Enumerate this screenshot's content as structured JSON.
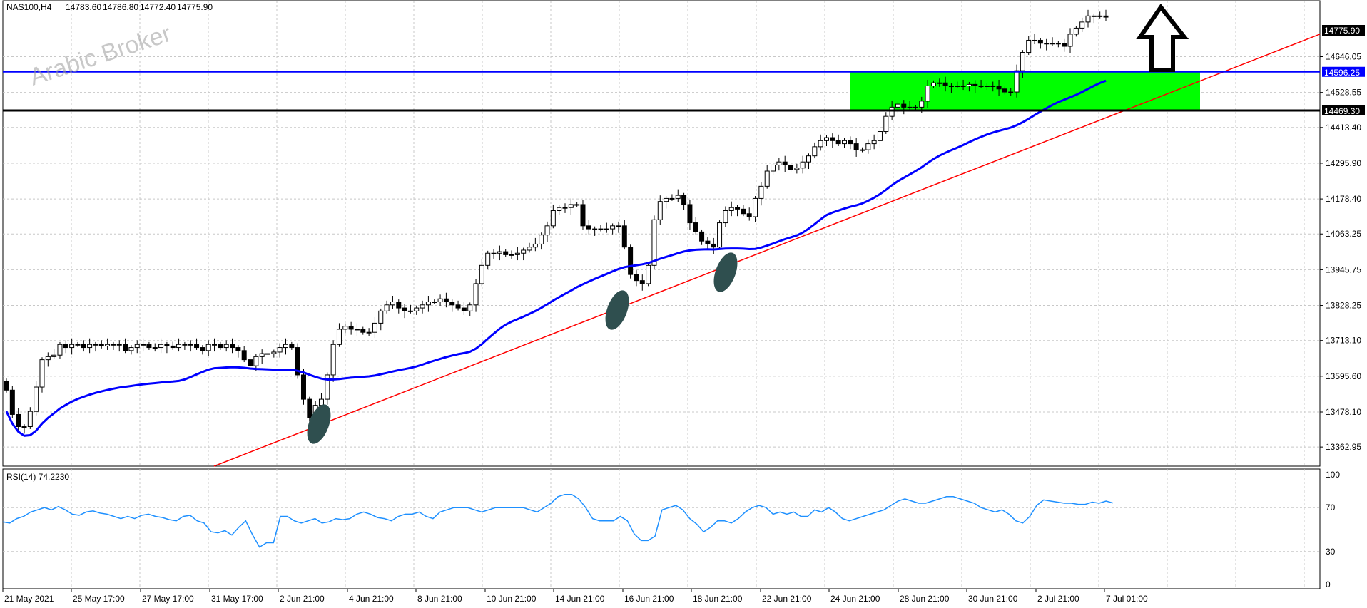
{
  "chart_data": {
    "type": "candlestick",
    "symbol_header": "NAS100,H4",
    "ohlc_header": [
      "14783.60",
      "14786.80",
      "14772.40",
      "14775.90"
    ],
    "watermark": "Arabic Broker",
    "ylim": [
      13300,
      14830
    ],
    "y_ticks": [
      "14646.05",
      "14528.55",
      "14413.40",
      "14295.90",
      "14178.40",
      "14063.25",
      "13945.75",
      "13828.25",
      "13713.10",
      "13595.60",
      "13478.10",
      "13362.95"
    ],
    "x_labels": [
      "21 May 2021",
      "25 May 17:00",
      "27 May 17:00",
      "31 May 17:00",
      "2 Jun 21:00",
      "4 Jun 21:00",
      "8 Jun 21:00",
      "10 Jun 21:00",
      "14 Jun 21:00",
      "16 Jun 21:00",
      "18 Jun 21:00",
      "22 Jun 21:00",
      "24 Jun 21:00",
      "28 Jun 21:00",
      "30 Jun 21:00",
      "2 Jul 21:00",
      "7 Jul 01:00"
    ],
    "price_tag": "14775.90",
    "levels": [
      {
        "label": "14596.25",
        "value": 14596.25,
        "color": "#0000ff"
      },
      {
        "label": "14469.30",
        "value": 14469.3,
        "color": "#000000"
      }
    ],
    "zone": {
      "from": 14469.3,
      "to": 14596.25,
      "color": "#00ff00"
    },
    "trendline_color": "#ff0000",
    "ma_color": "#0000ff",
    "candles": [
      13550,
      13470,
      13430,
      13430,
      13480,
      13560,
      13650,
      13660,
      13665,
      13700,
      13690,
      13700,
      13700,
      13690,
      13700,
      13700,
      13695,
      13700,
      13700,
      13700,
      13680,
      13690,
      13700,
      13700,
      13690,
      13690,
      13700,
      13695,
      13690,
      13700,
      13700,
      13700,
      13690,
      13680,
      13700,
      13700,
      13690,
      13700,
      13690,
      13680,
      13650,
      13630,
      13660,
      13670,
      13670,
      13675,
      13690,
      13700,
      13690,
      13600,
      13520,
      13460,
      13500,
      13520,
      13600,
      13700,
      13750,
      13760,
      13750,
      13750,
      13740,
      13740,
      13770,
      13810,
      13830,
      13840,
      13820,
      13810,
      13810,
      13820,
      13830,
      13840,
      13840,
      13850,
      13840,
      13830,
      13820,
      13810,
      13830,
      13900,
      13960,
      14000,
      14000,
      14005,
      13995,
      13995,
      14000,
      14010,
      14020,
      14030,
      14060,
      14090,
      14140,
      14150,
      14150,
      14160,
      14160,
      14090,
      14080,
      14080,
      14080,
      14080,
      14090,
      14090,
      14020,
      13930,
      13910,
      13900,
      13960,
      14110,
      14170,
      14180,
      14180,
      14190,
      14160,
      14100,
      14070,
      14040,
      14030,
      14020,
      14100,
      14140,
      14150,
      14145,
      14130,
      14120,
      14180,
      14220,
      14270,
      14290,
      14300,
      14290,
      14275,
      14280,
      14300,
      14320,
      14350,
      14370,
      14380,
      14370,
      14360,
      14370,
      14360,
      14340,
      14340,
      14360,
      14370,
      14400,
      14450,
      14480,
      14490,
      14480,
      14480,
      14480,
      14500,
      14550,
      14560,
      14560,
      14550,
      14550,
      14550,
      14550,
      14555,
      14550,
      14550,
      14550,
      14550,
      14540,
      14530,
      14530,
      14600,
      14660,
      14700,
      14700,
      14690,
      14690,
      14690,
      14690,
      14680,
      14720,
      14740,
      14760,
      14780,
      14780,
      14780,
      14776
    ]
  },
  "indicator": {
    "label": "RSI(14) 74.2230",
    "ticks": [
      "100",
      "70",
      "30",
      "0"
    ],
    "color": "#1e90ff",
    "values": [
      57,
      56,
      60,
      62,
      66,
      68,
      70,
      68,
      71,
      68,
      64,
      63,
      66,
      67,
      65,
      64,
      62,
      60,
      62,
      60,
      63,
      64,
      62,
      61,
      59,
      58,
      62,
      63,
      58,
      56,
      48,
      47,
      49,
      45,
      52,
      58,
      45,
      34,
      38,
      38,
      62,
      62,
      58,
      56,
      58,
      60,
      56,
      57,
      60,
      59,
      60,
      64,
      66,
      64,
      61,
      60,
      58,
      62,
      64,
      64,
      66,
      62,
      60,
      66,
      68,
      70,
      70,
      70,
      68,
      66,
      68,
      70,
      70,
      70,
      70,
      70,
      68,
      66,
      70,
      74,
      80,
      82,
      82,
      78,
      70,
      60,
      58,
      58,
      58,
      62,
      58,
      46,
      40,
      40,
      44,
      68,
      70,
      72,
      68,
      60,
      55,
      48,
      52,
      58,
      58,
      56,
      60,
      66,
      70,
      72,
      70,
      64,
      66,
      64,
      66,
      62,
      62,
      68,
      66,
      70,
      66,
      60,
      58,
      60,
      62,
      64,
      66,
      68,
      72,
      76,
      78,
      76,
      74,
      74,
      76,
      78,
      80,
      80,
      78,
      76,
      74,
      70,
      68,
      66,
      68,
      64,
      58,
      56,
      62,
      72,
      77,
      76,
      75,
      74,
      74,
      73,
      73,
      75,
      74,
      76,
      74.2
    ]
  }
}
